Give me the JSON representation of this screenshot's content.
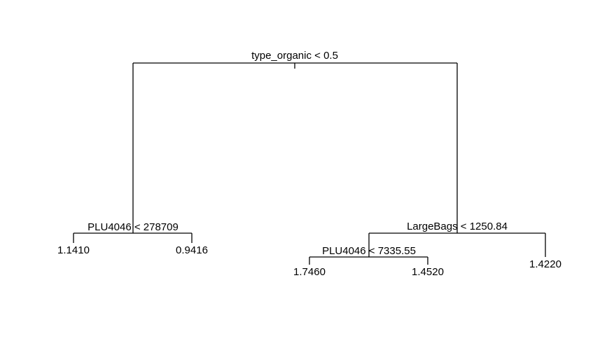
{
  "tree": {
    "root": {
      "split": "type_organic < 0.5",
      "left": {
        "split": "PLU4046 < 278709",
        "left": {
          "value": "1.1410"
        },
        "right": {
          "value": "0.9416"
        }
      },
      "right": {
        "split": "LargeBags < 1250.84",
        "left": {
          "split": "PLU4046 < 7335.55",
          "left": {
            "value": "1.7460"
          },
          "right": {
            "value": "1.4520"
          }
        },
        "right": {
          "value": "1.4220"
        }
      }
    }
  }
}
